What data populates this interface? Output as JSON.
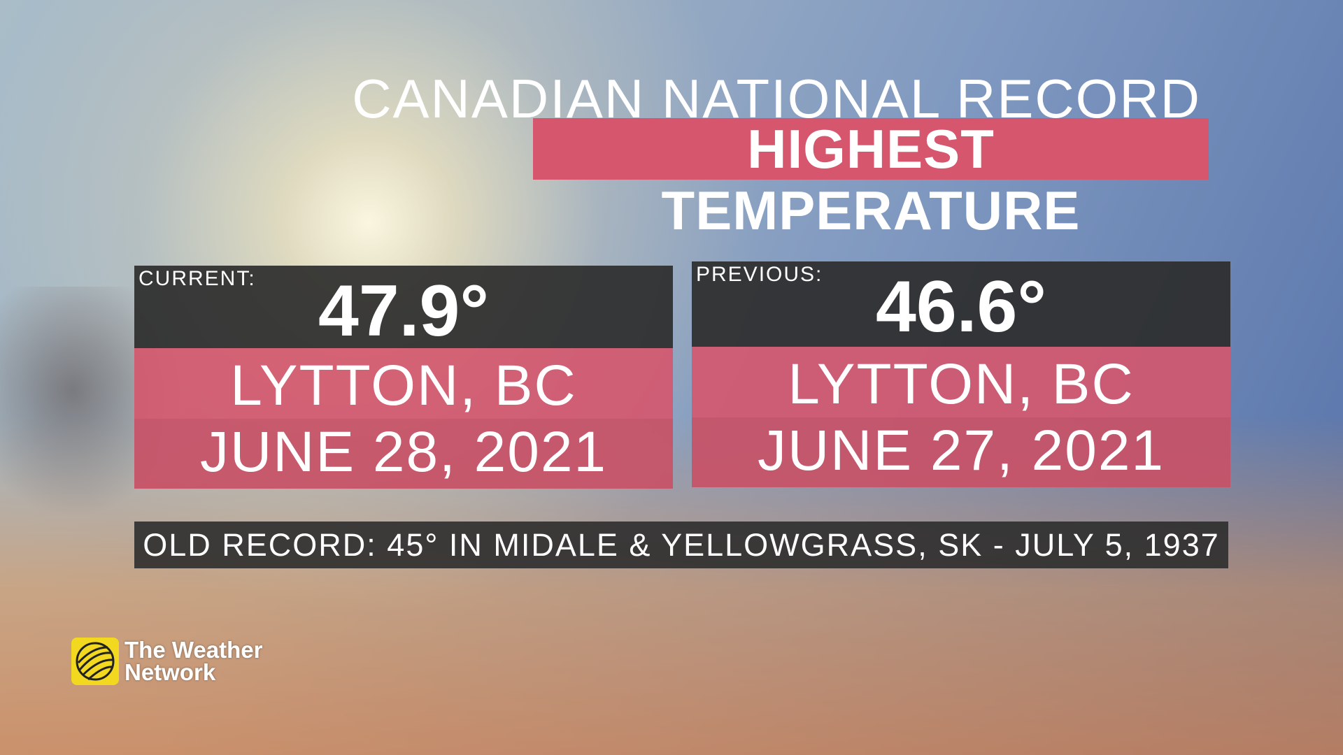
{
  "header": {
    "title": "CANADIAN NATIONAL RECORD",
    "subtitle": "HIGHEST TEMPERATURE"
  },
  "cards": [
    {
      "label": "CURRENT:",
      "temperature": "47.9°",
      "location": "LYTTON, BC",
      "date": "JUNE 28, 2021"
    },
    {
      "label": "PREVIOUS:",
      "temperature": "46.6°",
      "location": "LYTTON, BC",
      "date": "JUNE 27, 2021"
    }
  ],
  "footer": {
    "note": "OLD RECORD: 45° IN MIDALE & YELLOWGRASS, SK - JULY 5, 1937"
  },
  "logo": {
    "line1": "The Weather",
    "line2": "Network"
  }
}
